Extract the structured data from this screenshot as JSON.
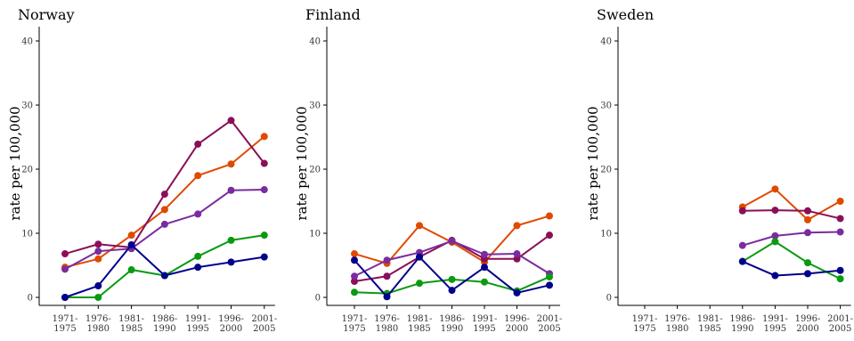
{
  "chart_data": [
    {
      "type": "line",
      "title": "Norway",
      "ylabel": "rate per 100,000",
      "xlabel": "",
      "ylim": [
        0,
        40
      ],
      "yticks": [
        "0",
        "10",
        "20",
        "30",
        "40"
      ],
      "categories": [
        {
          "line1": "1971-",
          "line2": "1975"
        },
        {
          "line1": "1976-",
          "line2": "1980"
        },
        {
          "line1": "1981-",
          "line2": "1985"
        },
        {
          "line1": "1986-",
          "line2": "1990"
        },
        {
          "line1": "1991-",
          "line2": "1995"
        },
        {
          "line1": "1996-",
          "line2": "2000"
        },
        {
          "line1": "2001-",
          "line2": "2005"
        }
      ],
      "series": [
        {
          "color": "#E04A00",
          "values": [
            4.7,
            6.0,
            9.7,
            13.7,
            19.0,
            20.8,
            25.1
          ]
        },
        {
          "color": "#8A0F58",
          "values": [
            6.8,
            8.3,
            7.8,
            16.1,
            23.9,
            27.6,
            20.9
          ]
        },
        {
          "color": "#7A2C9E",
          "values": [
            4.4,
            7.2,
            7.6,
            11.4,
            13.0,
            16.7,
            16.8
          ]
        },
        {
          "color": "#0A9A10",
          "values": [
            0.0,
            0.0,
            4.3,
            3.4,
            6.4,
            8.9,
            9.7
          ]
        },
        {
          "color": "#00008B",
          "values": [
            0.0,
            1.8,
            8.2,
            3.4,
            4.7,
            5.5,
            6.3
          ]
        }
      ]
    },
    {
      "type": "line",
      "title": "Finland",
      "ylabel": "rate per 100,000",
      "xlabel": "",
      "ylim": [
        0,
        40
      ],
      "yticks": [
        "0",
        "10",
        "20",
        "30",
        "40"
      ],
      "categories": [
        {
          "line1": "1971-",
          "line2": "1975"
        },
        {
          "line1": "1976-",
          "line2": "1980"
        },
        {
          "line1": "1981-",
          "line2": "1985"
        },
        {
          "line1": "1986-",
          "line2": "1990"
        },
        {
          "line1": "1991-",
          "line2": "1995"
        },
        {
          "line1": "1996-",
          "line2": "2000"
        },
        {
          "line1": "2001-",
          "line2": "2005"
        }
      ],
      "series": [
        {
          "color": "#E04A00",
          "values": [
            6.8,
            5.3,
            11.2,
            8.6,
            5.5,
            11.2,
            12.7
          ]
        },
        {
          "color": "#8A0F58",
          "values": [
            2.5,
            3.3,
            6.3,
            8.9,
            6.0,
            6.0,
            9.7
          ]
        },
        {
          "color": "#7A2C9E",
          "values": [
            3.3,
            5.8,
            7.0,
            8.8,
            6.7,
            6.8,
            3.7
          ]
        },
        {
          "color": "#0A9A10",
          "values": [
            0.8,
            0.6,
            2.2,
            2.8,
            2.4,
            1.0,
            3.2
          ]
        },
        {
          "color": "#00008B",
          "values": [
            5.8,
            0.1,
            6.3,
            1.1,
            4.7,
            0.7,
            1.9
          ]
        }
      ]
    },
    {
      "type": "line",
      "title": "Sweden",
      "ylabel": "rate per 100,000",
      "xlabel": "",
      "ylim": [
        0,
        40
      ],
      "yticks": [
        "0",
        "10",
        "20",
        "30",
        "40"
      ],
      "categories": [
        {
          "line1": "1971-",
          "line2": "1975"
        },
        {
          "line1": "1976-",
          "line2": "1980"
        },
        {
          "line1": "1981-",
          "line2": "1985"
        },
        {
          "line1": "1986-",
          "line2": "1990"
        },
        {
          "line1": "1991-",
          "line2": "1995"
        },
        {
          "line1": "1996-",
          "line2": "2000"
        },
        {
          "line1": "2001-",
          "line2": "2005"
        }
      ],
      "series": [
        {
          "color": "#E04A00",
          "values": [
            null,
            null,
            null,
            14.1,
            16.9,
            12.1,
            15.0
          ]
        },
        {
          "color": "#8A0F58",
          "values": [
            null,
            null,
            null,
            13.5,
            13.6,
            13.5,
            12.3
          ]
        },
        {
          "color": "#7A2C9E",
          "values": [
            null,
            null,
            null,
            8.1,
            9.6,
            10.1,
            10.2
          ]
        },
        {
          "color": "#0A9A10",
          "values": [
            null,
            null,
            null,
            5.6,
            8.7,
            5.4,
            2.9
          ]
        },
        {
          "color": "#00008B",
          "values": [
            null,
            null,
            null,
            5.6,
            3.4,
            3.7,
            4.2
          ]
        }
      ]
    }
  ]
}
